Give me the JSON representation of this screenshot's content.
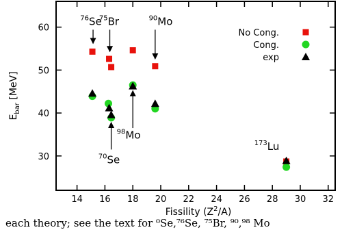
{
  "chart_data": {
    "type": "scatter",
    "title": "",
    "xlabel": "Fissility (Z²/A)",
    "ylabel": "E_bar [MeV]",
    "xlim": [
      12.5,
      32.5
    ],
    "ylim": [
      22,
      66
    ],
    "xticks": [
      14,
      16,
      18,
      20,
      22,
      24,
      26,
      28,
      30,
      32
    ],
    "yticks": [
      30,
      40,
      50,
      60
    ],
    "grid": false,
    "legend_position": "top-right",
    "series": [
      {
        "name": "No Cong.",
        "marker": "square",
        "color": "#e8120c",
        "points": [
          {
            "x": 15.1,
            "y": 54.3
          },
          {
            "x": 16.3,
            "y": 52.6
          },
          {
            "x": 16.45,
            "y": 50.7
          },
          {
            "x": 18.0,
            "y": 54.6
          },
          {
            "x": 19.6,
            "y": 50.9
          },
          {
            "x": 29.0,
            "y": 28.7
          }
        ]
      },
      {
        "name": "Cong.",
        "marker": "circle",
        "color": "#22d622",
        "points": [
          {
            "x": 15.1,
            "y": 43.9
          },
          {
            "x": 16.25,
            "y": 42.2
          },
          {
            "x": 16.45,
            "y": 38.9
          },
          {
            "x": 18.0,
            "y": 46.5
          },
          {
            "x": 19.6,
            "y": 41.0
          },
          {
            "x": 29.0,
            "y": 27.4
          }
        ]
      },
      {
        "name": "exp",
        "marker": "triangle",
        "color": "#000000",
        "points": [
          {
            "x": 15.1,
            "y": 44.6
          },
          {
            "x": 16.3,
            "y": 41.2
          },
          {
            "x": 16.45,
            "y": 39.6
          },
          {
            "x": 18.0,
            "y": 46.3
          },
          {
            "x": 19.6,
            "y": 42.2
          },
          {
            "x": 29.0,
            "y": 28.9
          }
        ]
      }
    ],
    "annotations": [
      {
        "mass": "76",
        "element": "Se",
        "label_x": 15.0,
        "label_y": 60.5,
        "arrow_from": [
          15.15,
          59.4
        ],
        "arrow_to": [
          15.15,
          56.2
        ]
      },
      {
        "mass": "75",
        "element": "Br",
        "label_x": 16.3,
        "label_y": 60.5,
        "arrow_from": [
          16.35,
          59.4
        ],
        "arrow_to": [
          16.35,
          54.3
        ]
      },
      {
        "mass": "90",
        "element": "Mo",
        "label_x": 20.0,
        "label_y": 60.5,
        "arrow_from": [
          19.6,
          59.4
        ],
        "arrow_to": [
          19.6,
          52.6
        ]
      },
      {
        "mass": "98",
        "element": "Mo",
        "label_x": 17.7,
        "label_y": 34.0,
        "arrow_from": [
          18.0,
          36.5
        ],
        "arrow_to": [
          18.0,
          45.2
        ]
      },
      {
        "mass": "70",
        "element": "Se",
        "label_x": 16.3,
        "label_y": 28.3,
        "arrow_from": [
          16.45,
          31.5
        ],
        "arrow_to": [
          16.45,
          37.8
        ]
      },
      {
        "mass": "173",
        "element": "Lu",
        "label_x": 27.6,
        "label_y": 31.4,
        "arrow_from": null,
        "arrow_to": null
      }
    ]
  },
  "caption": "each theory; see the text for  ⁰Se,⁷⁶Se,   ⁷⁵Br,   ⁹⁰,⁹⁸ Mo"
}
